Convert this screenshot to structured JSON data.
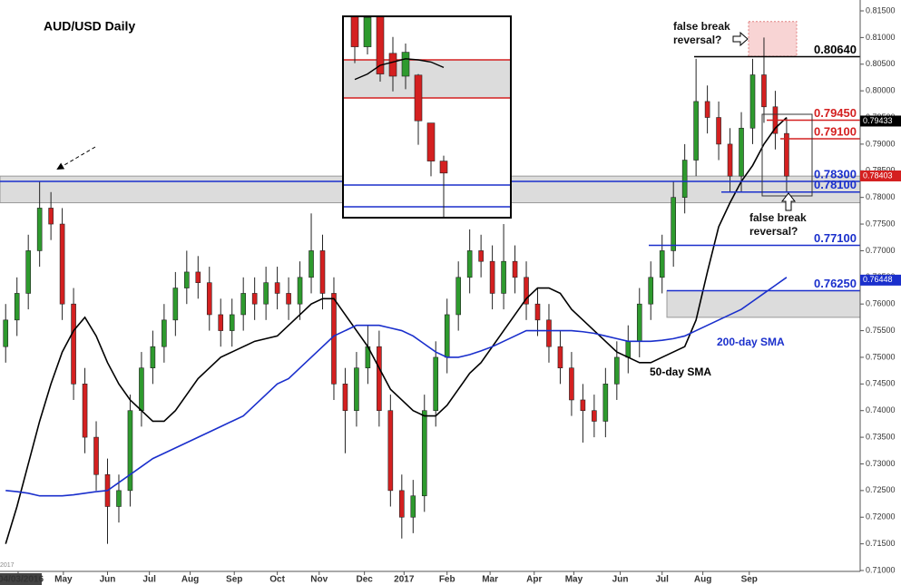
{
  "chart_data": [
    {
      "type": "candlestick",
      "title": "AUD/USD Daily",
      "ylim": [
        0.71,
        0.815
      ],
      "yticks": [
        {
          "value": 0.71,
          "label": "0.71000"
        },
        {
          "value": 0.715,
          "label": "0.71500"
        },
        {
          "value": 0.72,
          "label": "0.72000"
        },
        {
          "value": 0.725,
          "label": "0.72500"
        },
        {
          "value": 0.73,
          "label": "0.73000"
        },
        {
          "value": 0.735,
          "label": "0.73500"
        },
        {
          "value": 0.74,
          "label": "0.74000"
        },
        {
          "value": 0.745,
          "label": "0.74500"
        },
        {
          "value": 0.75,
          "label": "0.75000"
        },
        {
          "value": 0.755,
          "label": "0.75500"
        },
        {
          "value": 0.76,
          "label": "0.76000"
        },
        {
          "value": 0.765,
          "label": "0.76500"
        },
        {
          "value": 0.77,
          "label": "0.77000"
        },
        {
          "value": 0.775,
          "label": "0.77500"
        },
        {
          "value": 0.78,
          "label": "0.78000"
        },
        {
          "value": 0.785,
          "label": "0.78500"
        },
        {
          "value": 0.79,
          "label": "0.79000"
        },
        {
          "value": 0.795,
          "label": "0.79500"
        },
        {
          "value": 0.8,
          "label": "0.80000"
        },
        {
          "value": 0.805,
          "label": "0.80500"
        },
        {
          "value": 0.81,
          "label": "0.81000"
        },
        {
          "value": 0.815,
          "label": "0.81500"
        }
      ],
      "x_labels": [
        {
          "value": 1.6,
          "label": "04/03/2016"
        },
        {
          "value": 5.6,
          "label": "May"
        },
        {
          "value": 9.5,
          "label": "Jun"
        },
        {
          "value": 13.2,
          "label": "Jul"
        },
        {
          "value": 16.8,
          "label": "Aug"
        },
        {
          "value": 20.7,
          "label": "Sep"
        },
        {
          "value": 24.5,
          "label": "Oct"
        },
        {
          "value": 28.2,
          "label": "Nov"
        },
        {
          "value": 32.2,
          "label": "Dec"
        },
        {
          "value": 35.7,
          "label": "2017"
        },
        {
          "value": 39.5,
          "label": "Feb"
        },
        {
          "value": 43.3,
          "label": "Mar"
        },
        {
          "value": 47.2,
          "label": "Apr"
        },
        {
          "value": 50.7,
          "label": "May"
        },
        {
          "value": 54.8,
          "label": "Jun"
        },
        {
          "value": 58.5,
          "label": "Jul"
        },
        {
          "value": 62.1,
          "label": "Aug"
        },
        {
          "value": 66.2,
          "label": "Sep"
        }
      ],
      "corner_label": "2017",
      "up_color": "#2e9a2e",
      "down_color": "#d42020",
      "open": [
        0.752,
        0.757,
        0.762,
        0.77,
        0.778,
        0.775,
        0.76,
        0.745,
        0.735,
        0.728,
        0.722,
        0.725,
        0.74,
        0.748,
        0.752,
        0.757,
        0.763,
        0.766,
        0.764,
        0.758,
        0.755,
        0.758,
        0.762,
        0.76,
        0.764,
        0.762,
        0.76,
        0.765,
        0.77,
        0.762,
        0.745,
        0.74,
        0.748,
        0.752,
        0.74,
        0.725,
        0.72,
        0.724,
        0.74,
        0.75,
        0.758,
        0.765,
        0.77,
        0.768,
        0.762,
        0.768,
        0.765,
        0.76,
        0.757,
        0.752,
        0.748,
        0.742,
        0.74,
        0.738,
        0.745,
        0.75,
        0.753,
        0.76,
        0.765,
        0.77,
        0.78,
        0.787,
        0.798,
        0.795,
        0.79,
        0.784,
        0.793,
        0.803,
        0.797,
        0.792
      ],
      "high": [
        0.76,
        0.765,
        0.773,
        0.783,
        0.781,
        0.778,
        0.763,
        0.748,
        0.738,
        0.731,
        0.728,
        0.743,
        0.751,
        0.755,
        0.76,
        0.766,
        0.77,
        0.769,
        0.767,
        0.761,
        0.761,
        0.765,
        0.765,
        0.767,
        0.767,
        0.765,
        0.768,
        0.777,
        0.773,
        0.765,
        0.748,
        0.751,
        0.756,
        0.755,
        0.743,
        0.728,
        0.727,
        0.743,
        0.753,
        0.761,
        0.768,
        0.774,
        0.773,
        0.771,
        0.775,
        0.771,
        0.768,
        0.763,
        0.76,
        0.755,
        0.751,
        0.745,
        0.743,
        0.748,
        0.753,
        0.756,
        0.763,
        0.768,
        0.773,
        0.783,
        0.79,
        0.806,
        0.801,
        0.798,
        0.793,
        0.796,
        0.806,
        0.81,
        0.8,
        0.795
      ],
      "low": [
        0.749,
        0.754,
        0.759,
        0.767,
        0.772,
        0.757,
        0.742,
        0.732,
        0.725,
        0.715,
        0.719,
        0.722,
        0.737,
        0.745,
        0.749,
        0.754,
        0.76,
        0.761,
        0.755,
        0.752,
        0.752,
        0.755,
        0.757,
        0.757,
        0.759,
        0.757,
        0.757,
        0.762,
        0.759,
        0.742,
        0.732,
        0.737,
        0.745,
        0.737,
        0.722,
        0.716,
        0.717,
        0.721,
        0.737,
        0.747,
        0.755,
        0.762,
        0.765,
        0.759,
        0.759,
        0.762,
        0.757,
        0.754,
        0.749,
        0.745,
        0.739,
        0.734,
        0.735,
        0.735,
        0.742,
        0.747,
        0.75,
        0.757,
        0.762,
        0.767,
        0.777,
        0.784,
        0.792,
        0.787,
        0.781,
        0.781,
        0.79,
        0.794,
        0.789,
        0.781
      ],
      "close": [
        0.757,
        0.762,
        0.77,
        0.778,
        0.775,
        0.76,
        0.745,
        0.735,
        0.728,
        0.722,
        0.725,
        0.74,
        0.748,
        0.752,
        0.757,
        0.763,
        0.766,
        0.764,
        0.758,
        0.755,
        0.758,
        0.762,
        0.76,
        0.764,
        0.762,
        0.76,
        0.765,
        0.77,
        0.762,
        0.745,
        0.74,
        0.748,
        0.752,
        0.74,
        0.725,
        0.72,
        0.724,
        0.74,
        0.75,
        0.758,
        0.765,
        0.77,
        0.768,
        0.762,
        0.768,
        0.765,
        0.76,
        0.757,
        0.752,
        0.748,
        0.742,
        0.74,
        0.738,
        0.745,
        0.75,
        0.753,
        0.76,
        0.765,
        0.77,
        0.78,
        0.787,
        0.798,
        0.795,
        0.79,
        0.784,
        0.793,
        0.803,
        0.797,
        0.792,
        0.784
      ],
      "lines": [
        {
          "name": "50-day SMA",
          "color": "#000000",
          "values": [
            0.715,
            0.722,
            0.73,
            0.738,
            0.745,
            0.751,
            0.755,
            0.7575,
            0.754,
            0.749,
            0.745,
            0.742,
            0.74,
            0.738,
            0.738,
            0.74,
            0.743,
            0.746,
            0.748,
            0.75,
            0.751,
            0.752,
            0.753,
            0.7535,
            0.754,
            0.756,
            0.758,
            0.76,
            0.761,
            0.761,
            0.758,
            0.755,
            0.752,
            0.748,
            0.744,
            0.742,
            0.74,
            0.739,
            0.739,
            0.741,
            0.744,
            0.747,
            0.749,
            0.752,
            0.755,
            0.758,
            0.761,
            0.763,
            0.763,
            0.762,
            0.759,
            0.757,
            0.755,
            0.753,
            0.751,
            0.75,
            0.749,
            0.749,
            0.75,
            0.751,
            0.752,
            0.757,
            0.766,
            0.7745,
            0.779,
            0.783,
            0.786,
            0.79,
            0.793,
            0.795
          ]
        },
        {
          "name": "200-day SMA",
          "color": "#1a2fcc",
          "values": [
            0.725,
            0.7248,
            0.7245,
            0.724,
            0.724,
            0.724,
            0.7242,
            0.7245,
            0.7248,
            0.725,
            0.7265,
            0.728,
            0.7295,
            0.731,
            0.732,
            0.733,
            0.734,
            0.735,
            0.736,
            0.737,
            0.738,
            0.739,
            0.741,
            0.743,
            0.745,
            0.746,
            0.748,
            0.75,
            0.752,
            0.754,
            0.755,
            0.756,
            0.756,
            0.756,
            0.7555,
            0.755,
            0.754,
            0.7525,
            0.751,
            0.75,
            0.75,
            0.7505,
            0.7512,
            0.752,
            0.753,
            0.754,
            0.755,
            0.755,
            0.755,
            0.755,
            0.755,
            0.7548,
            0.7545,
            0.754,
            0.7535,
            0.753,
            0.753,
            0.753,
            0.7532,
            0.7535,
            0.754,
            0.755,
            0.756,
            0.757,
            0.758,
            0.759,
            0.7605,
            0.762,
            0.7635,
            0.765
          ]
        }
      ],
      "levels": [
        {
          "value": 0.8064,
          "label": "0.80640",
          "color": "#000000"
        },
        {
          "value": 0.7945,
          "label": "0.79450",
          "color": "#d42020"
        },
        {
          "value": 0.791,
          "label": "0.79100",
          "color": "#d42020"
        },
        {
          "value": 0.783,
          "label": "0.78300",
          "color": "#1a2fcc"
        },
        {
          "value": 0.781,
          "label": "0.78100",
          "color": "#1a2fcc"
        },
        {
          "value": 0.771,
          "label": "0.77100",
          "color": "#1a2fcc"
        },
        {
          "value": 0.7625,
          "label": "0.76250",
          "color": "#1a2fcc"
        }
      ],
      "zones": [
        {
          "low": 0.779,
          "high": 0.784,
          "color": "#dcdcdc"
        },
        {
          "low": 0.7575,
          "high": 0.7625,
          "color": "#dcdcdc"
        },
        {
          "low": 0.8065,
          "high": 0.813,
          "color": "#f8d4d4"
        }
      ],
      "price_tags": [
        {
          "value": 0.79433,
          "color": "#000000"
        },
        {
          "value": 0.78403,
          "color": "#d42020"
        },
        {
          "value": 0.76448,
          "color": "#1a2fcc"
        }
      ],
      "annotations": [
        [
          "false break",
          "reversal?"
        ],
        [
          "false break",
          "reversal?"
        ]
      ]
    },
    {
      "type": "candlestick",
      "ylim": [
        0.78,
        0.7985
      ],
      "up_color": "#2e9a2e",
      "down_color": "#d42020",
      "open": [
        0.7985,
        0.7957,
        0.7985,
        0.7951,
        0.793,
        0.7931,
        0.7887,
        0.7852
      ],
      "high": [
        0.7985,
        0.7985,
        0.7985,
        0.7966,
        0.796,
        0.7932,
        0.7887,
        0.7857
      ],
      "low": [
        0.7942,
        0.795,
        0.7925,
        0.7916,
        0.7918,
        0.7867,
        0.7838,
        0.78
      ],
      "close": [
        0.7957,
        0.7984,
        0.7932,
        0.793,
        0.7952,
        0.7889,
        0.7852,
        0.7841
      ],
      "lines": [
        {
          "color": "#000000",
          "values": [
            0.7927,
            0.7932,
            0.794,
            0.7943,
            0.7946,
            0.7945,
            0.7943,
            0.7938
          ]
        }
      ],
      "levels": [
        {
          "value": 0.7945,
          "color": "#d42020"
        },
        {
          "value": 0.791,
          "color": "#d42020"
        },
        {
          "value": 0.783,
          "color": "#1a2fcc"
        },
        {
          "value": 0.781,
          "color": "#1a2fcc"
        }
      ],
      "zones": [
        {
          "low": 0.791,
          "high": 0.7945,
          "color": "#dcdcdc"
        }
      ]
    }
  ]
}
